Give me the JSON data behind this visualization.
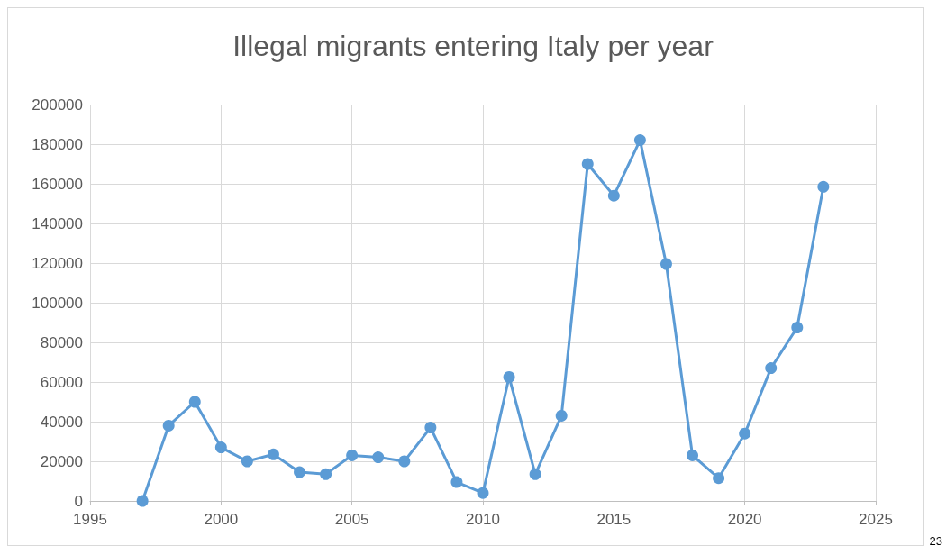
{
  "chart_data": {
    "type": "line",
    "title": "Illegal migrants entering Italy per year",
    "x": [
      1997,
      1998,
      1999,
      2000,
      2001,
      2002,
      2003,
      2004,
      2005,
      2006,
      2007,
      2008,
      2009,
      2010,
      2011,
      2012,
      2013,
      2014,
      2015,
      2016,
      2017,
      2018,
      2019,
      2020,
      2021,
      2022,
      2023
    ],
    "series": [
      {
        "color": "#5b9bd5",
        "values": [
          0,
          38000,
          50000,
          27000,
          20000,
          23500,
          14500,
          13500,
          23000,
          22000,
          20000,
          37000,
          9500,
          4000,
          62500,
          13500,
          43000,
          170000,
          154000,
          182000,
          119500,
          23000,
          11500,
          34000,
          67000,
          87500,
          158500
        ]
      }
    ],
    "xlim": [
      1995,
      2025
    ],
    "xticks": [
      1995,
      2000,
      2005,
      2010,
      2015,
      2020,
      2025
    ],
    "ylim": [
      0,
      200000
    ],
    "yticks": [
      0,
      20000,
      40000,
      60000,
      80000,
      100000,
      120000,
      140000,
      160000,
      180000,
      200000
    ],
    "grid": true,
    "marker": "circle",
    "line_style": "solid",
    "annotations": [
      "23"
    ]
  }
}
